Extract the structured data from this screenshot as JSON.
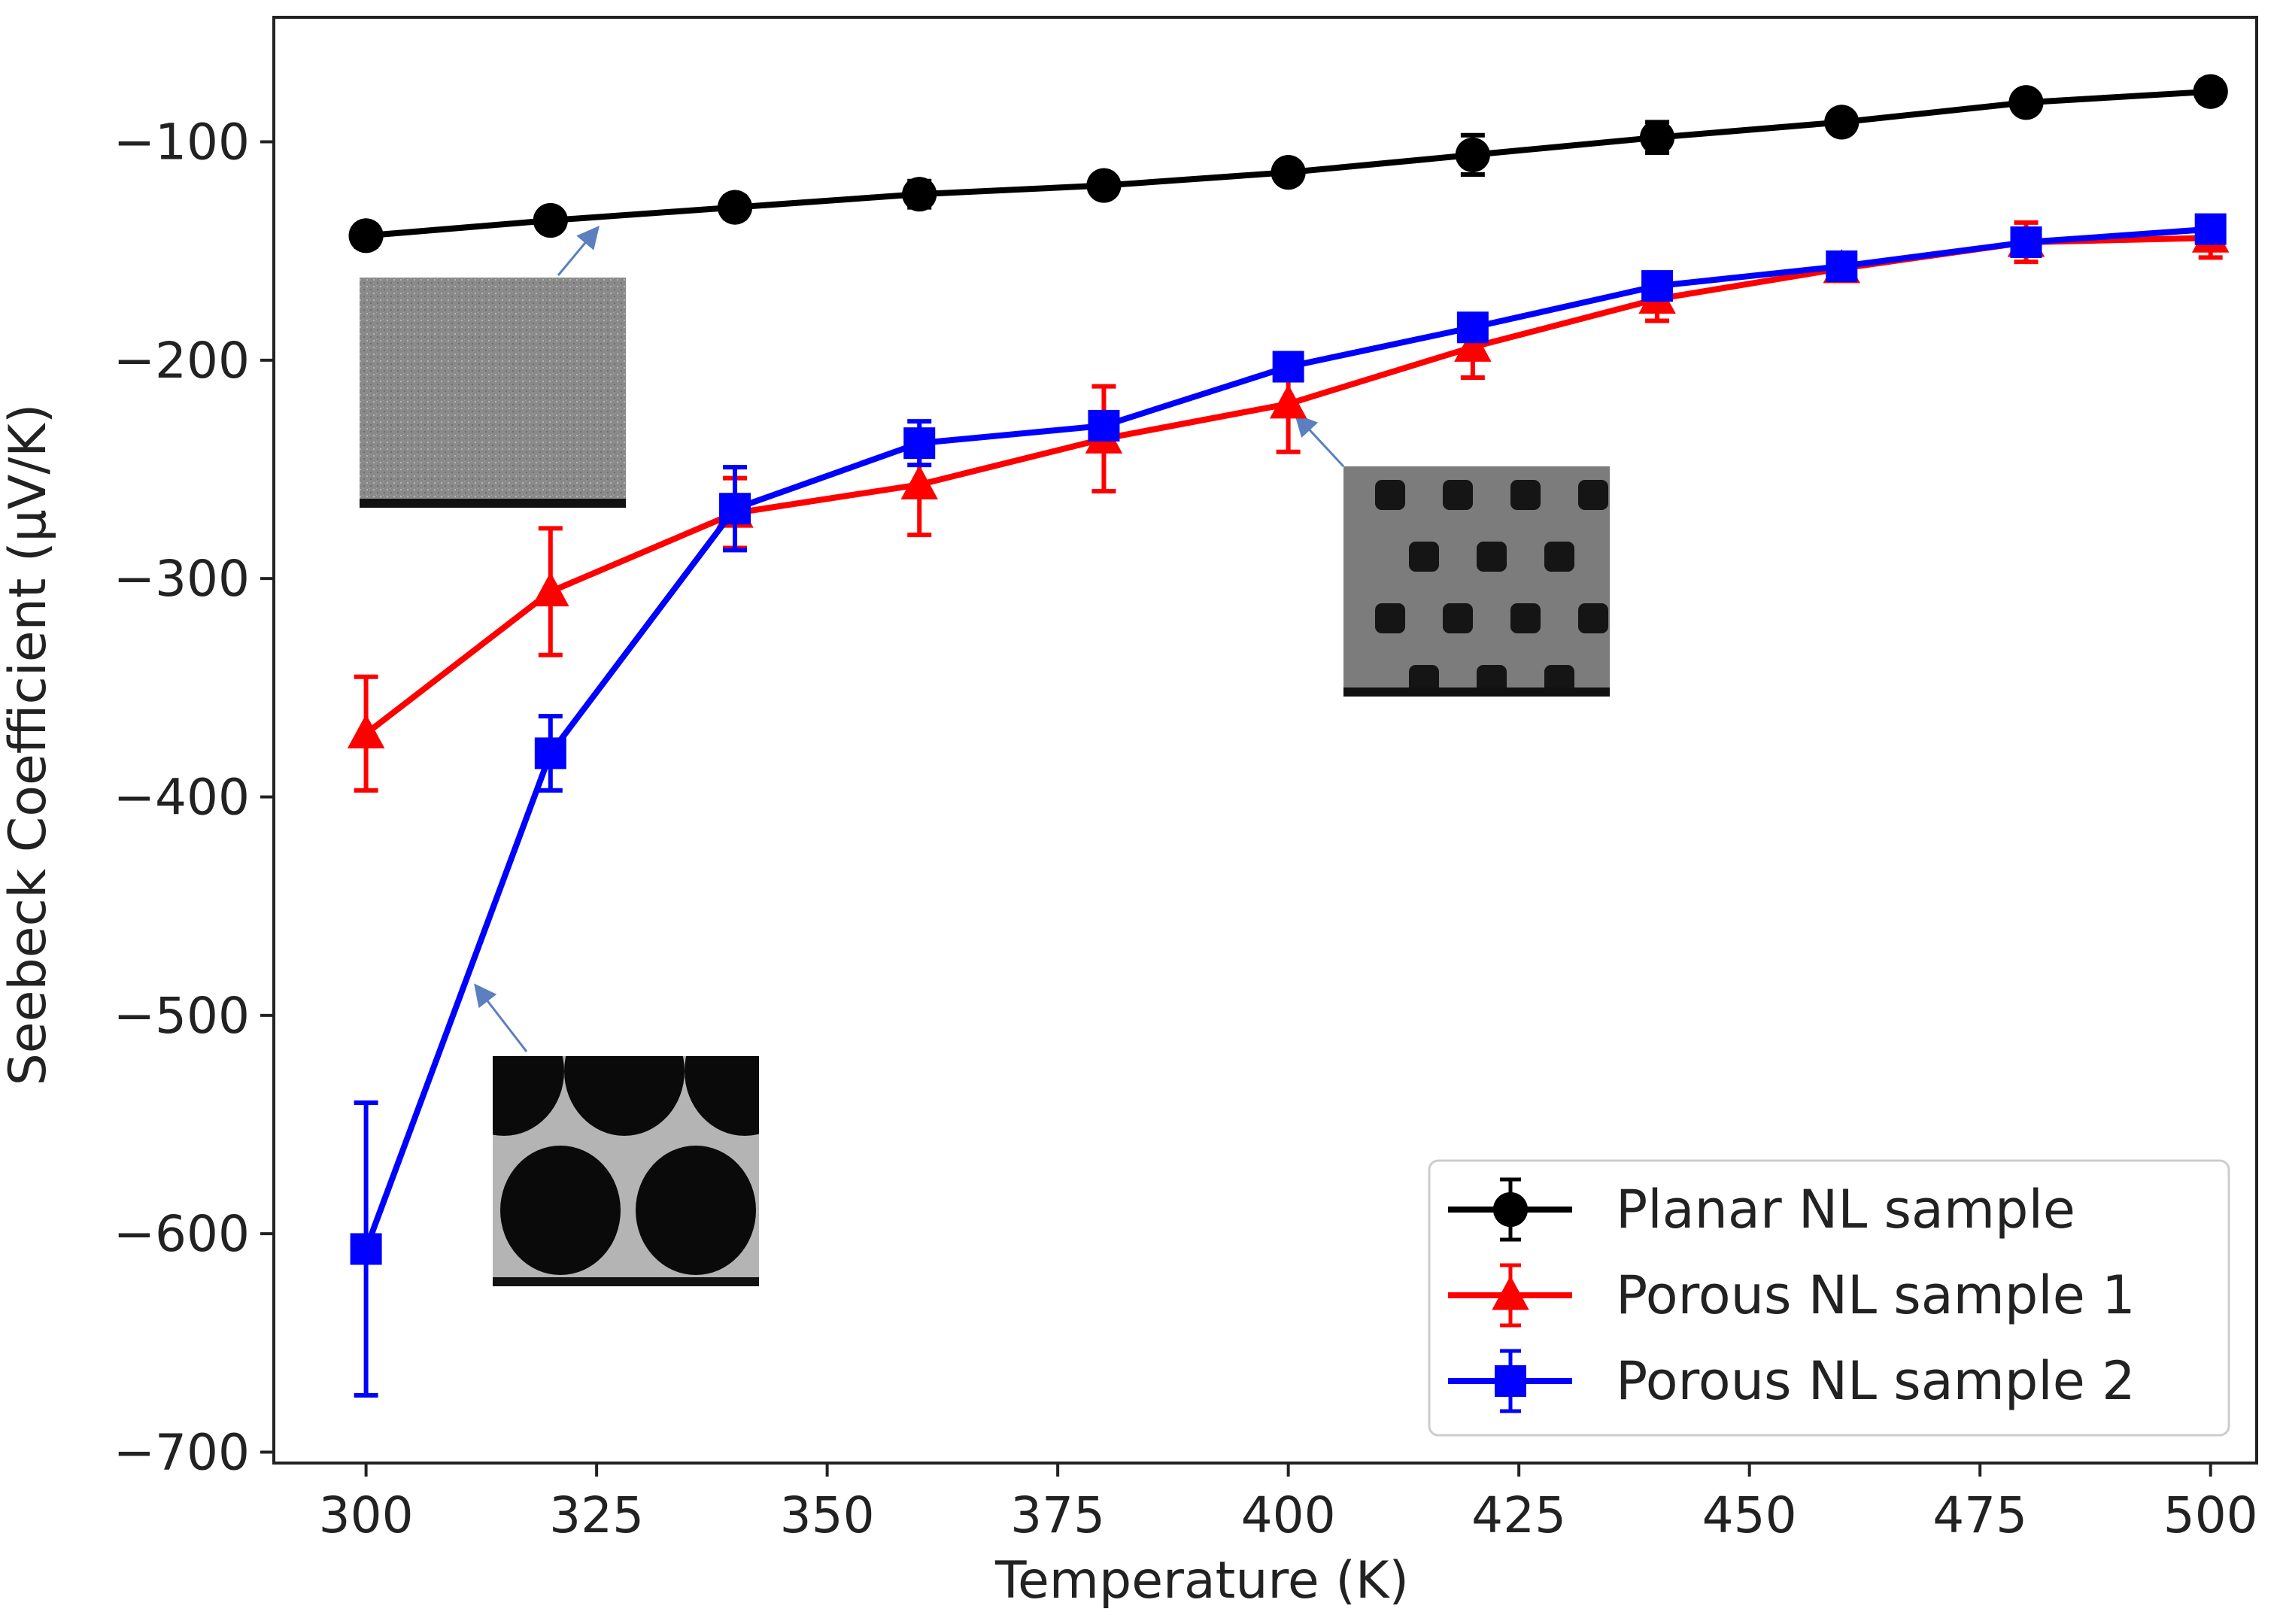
{
  "chart_data": {
    "type": "line",
    "title": "",
    "xlabel": "Temperature (K)",
    "ylabel": "Seebeck Coefficient (μV/K)",
    "xlim": [
      290,
      505
    ],
    "ylim": [
      -705,
      -43
    ],
    "x_ticks": [
      300,
      325,
      350,
      375,
      400,
      425,
      450,
      475,
      500
    ],
    "y_ticks": [
      -100,
      -200,
      -300,
      -400,
      -500,
      -600,
      -700
    ],
    "grid": false,
    "legend_position": "lower-right",
    "x": [
      300,
      320,
      340,
      360,
      380,
      400,
      420,
      440,
      460,
      480,
      500
    ],
    "series": [
      {
        "name": "Planar NL sample",
        "color": "#000000",
        "marker": "circle",
        "values": [
          -143,
          -136,
          -130,
          -124,
          -120,
          -114,
          -106,
          -98,
          -91,
          -82,
          -77
        ],
        "errors": [
          5,
          4,
          5,
          6,
          4,
          4,
          9,
          7,
          4,
          4,
          5
        ]
      },
      {
        "name": "Porous NL sample 1",
        "color": "#ff0000",
        "marker": "triangle",
        "values": [
          -371,
          -306,
          -270,
          -257,
          -236,
          -220,
          -194,
          -172,
          -158,
          -146,
          -144
        ],
        "errors": [
          26,
          29,
          16,
          23,
          24,
          22,
          14,
          10,
          5,
          9,
          9
        ]
      },
      {
        "name": "Porous NL sample 2",
        "color": "#0000ff",
        "marker": "square",
        "values": [
          -607,
          -380,
          -268,
          -238,
          -230,
          -203,
          -185,
          -166,
          -157,
          -146,
          -140
        ],
        "errors": [
          67,
          17,
          19,
          10,
          4,
          4,
          5,
          5,
          5,
          6,
          5
        ]
      }
    ],
    "insets": [
      {
        "name": "inset-planar",
        "points_to_x": 325,
        "points_to_y": -140,
        "texture": "planar"
      },
      {
        "name": "inset-porous-small",
        "points_to_x": 401,
        "points_to_y": -226,
        "texture": "small-pores"
      },
      {
        "name": "inset-porous-large",
        "points_to_x": 312,
        "points_to_y": -487,
        "texture": "large-pores"
      }
    ]
  }
}
